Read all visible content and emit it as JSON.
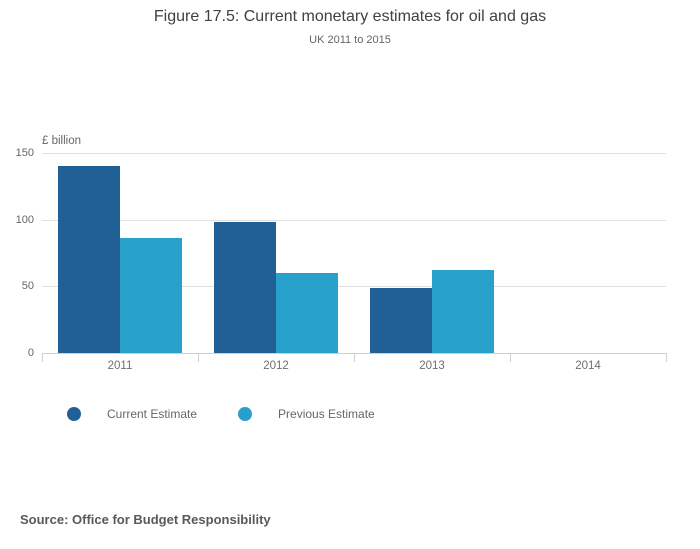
{
  "chart_data": {
    "type": "bar",
    "title": "Figure 17.5: Current monetary estimates for oil and gas",
    "subtitle": "UK 2011 to 2015",
    "categories": [
      "2011",
      "2012",
      "2013",
      "2014"
    ],
    "series": [
      {
        "name": "Current Estimate",
        "color": "#206095",
        "values": [
          140,
          98,
          49,
          null
        ]
      },
      {
        "name": "Previous Estimate",
        "color": "#27a0cc",
        "values": [
          86,
          60,
          62,
          null
        ]
      }
    ],
    "xlabel": "",
    "ylabel": "£ billion",
    "ylim": [
      0,
      150
    ],
    "yticks": [
      0,
      50,
      100,
      150
    ],
    "grid": true,
    "legend_position": "bottom-left",
    "source": "Source: Office for Budget Responsibility"
  }
}
